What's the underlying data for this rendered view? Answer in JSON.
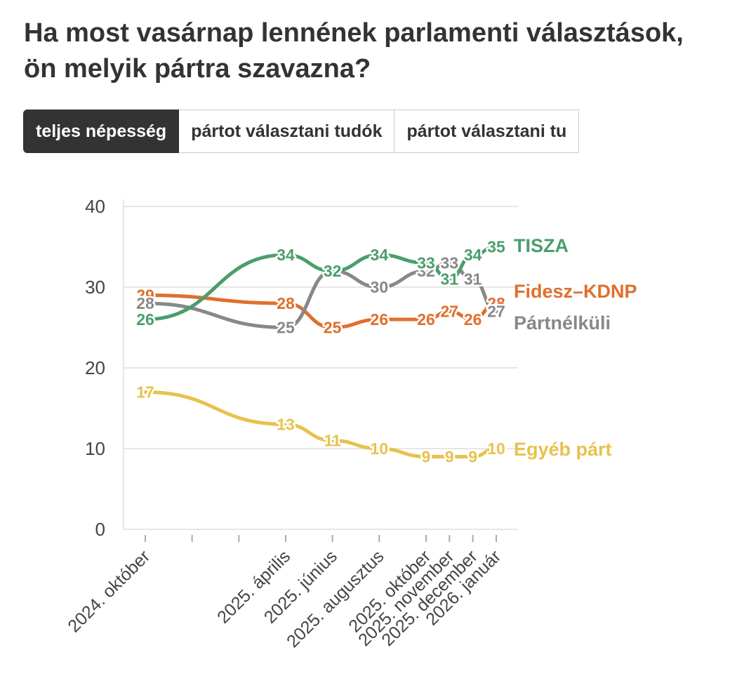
{
  "header": {
    "title": "Ha most vasárnap lennének parlamenti választások, ön melyik pártra szavazna?"
  },
  "tabs": [
    {
      "label": "teljes népesség",
      "active": true
    },
    {
      "label": "pártot választani tudók",
      "active": false
    },
    {
      "label": "pártot választani tu",
      "active": false
    }
  ],
  "chart_data": {
    "type": "line",
    "title": "Ha most vasárnap lennének parlamenti választások, ön melyik pártra szavazna?",
    "x": [
      "2024. október",
      "2025. április",
      "2025. június",
      "2025. augusztus",
      "2025. október",
      "2025. november",
      "2025. december",
      "2026. január"
    ],
    "x_months_index": [
      0,
      6,
      8,
      10,
      12,
      13,
      14,
      15
    ],
    "ylim": [
      0,
      40
    ],
    "yticks": [
      0,
      10,
      20,
      30,
      40
    ],
    "grid": true,
    "series": [
      {
        "name": "TISZA",
        "color": "#4a9e6b",
        "values": [
          26,
          34,
          32,
          34,
          33,
          31,
          34,
          35
        ]
      },
      {
        "name": "Fidesz–KDNP",
        "color": "#e06f2e",
        "values": [
          29,
          28,
          25,
          26,
          26,
          27,
          26,
          28
        ]
      },
      {
        "name": "Pártnélküli",
        "color": "#888888",
        "values": [
          28,
          25,
          32,
          30,
          32,
          33,
          31,
          27
        ]
      },
      {
        "name": "Egyéb párt",
        "color": "#e8c14f",
        "values": [
          17,
          13,
          11,
          10,
          9,
          9,
          9,
          10
        ]
      }
    ]
  }
}
